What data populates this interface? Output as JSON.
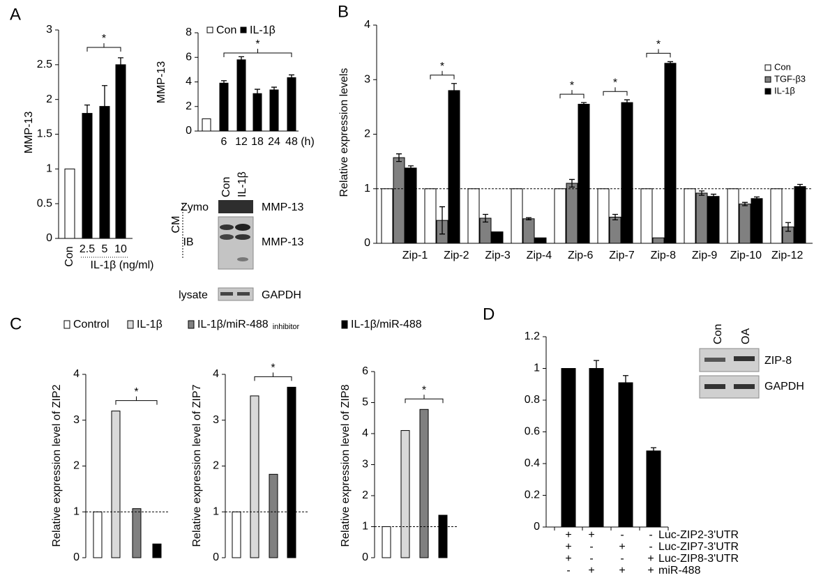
{
  "chart_data": [
    {
      "type": "bar",
      "panel": "A",
      "ylabel": "MMP-13",
      "categories": [
        "Con",
        "2.5",
        "5",
        "10"
      ],
      "xlabel": "IL-1β (ng/ml)",
      "values": [
        1,
        1.8,
        1.9,
        2.5
      ],
      "errors": [
        null,
        0.12,
        0.3,
        0.1
      ],
      "colors": [
        "#ffffff",
        "#000000",
        "#000000",
        "#000000"
      ],
      "ylim": [
        0,
        3
      ],
      "yticks": [
        0,
        0.5,
        1,
        1.5,
        2,
        2.5,
        3
      ],
      "significance": "*"
    },
    {
      "type": "bar",
      "ylabel": "MMP-13",
      "categories": [
        null,
        "6",
        "12",
        "18",
        "24",
        "48"
      ],
      "xunit": "(h)",
      "values": [
        1,
        3.9,
        5.8,
        3.05,
        3.35,
        4.35
      ],
      "errors": [
        null,
        0.2,
        0.25,
        0.35,
        0.22,
        0.22
      ],
      "colors": [
        "#ffffff",
        "#000000",
        "#000000",
        "#000000",
        "#000000",
        "#000000"
      ],
      "legend": [
        {
          "name": "Con",
          "color": "#ffffff"
        },
        {
          "name": "IL-1β",
          "color": "#000000"
        }
      ],
      "ylim": [
        0,
        8
      ],
      "yticks": [
        0,
        2,
        4,
        6,
        8
      ],
      "significance": "*"
    },
    {
      "type": "grouped-bar",
      "panel": "B",
      "ylabel": "Relative expression levels",
      "categories": [
        "Zip-1",
        "Zip-2",
        "Zip-3",
        "Zip-4",
        "Zip-6",
        "Zip-7",
        "Zip-8",
        "Zip-9",
        "Zip-10",
        "Zip-12"
      ],
      "series": [
        {
          "name": "Con",
          "color": "#ffffff",
          "values": [
            1,
            1,
            1,
            1,
            1,
            1,
            1,
            1,
            1,
            1
          ],
          "errors": [
            null,
            null,
            null,
            null,
            null,
            null,
            null,
            null,
            null,
            null
          ]
        },
        {
          "name": "TGF-β3",
          "color": "#808080",
          "values": [
            1.57,
            0.42,
            0.46,
            0.45,
            1.1,
            0.48,
            0.1,
            0.92,
            0.72,
            0.3
          ],
          "errors": [
            0.07,
            0.25,
            0.07,
            0.02,
            0.07,
            0.05,
            null,
            0.04,
            0.03,
            0.08
          ]
        },
        {
          "name": "IL-1β",
          "color": "#000000",
          "values": [
            1.38,
            2.8,
            0.21,
            0.1,
            2.55,
            2.58,
            3.3,
            0.86,
            0.82,
            1.04
          ],
          "errors": [
            0.04,
            0.13,
            null,
            null,
            0.03,
            0.05,
            0.03,
            0.04,
            0.03,
            0.04
          ]
        }
      ],
      "ylim": [
        0,
        4
      ],
      "yticks": [
        0,
        1,
        2,
        3,
        4
      ],
      "reference_line": 1,
      "significant": [
        "Zip-2",
        "Zip-6",
        "Zip-7",
        "Zip-8"
      ],
      "significance": "*"
    },
    {
      "type": "bar-set",
      "panel": "C",
      "legend": [
        {
          "name": "Control",
          "color": "#ffffff"
        },
        {
          "name": "IL-1β",
          "color": "#d9d9d9"
        },
        {
          "name": "IL-1β/miR-488",
          "note": "inhibitor",
          "color": "#808080"
        },
        {
          "name": "IL-1β/miR-488",
          "color": "#000000"
        }
      ],
      "charts": [
        {
          "ylabel": "Relative expression level of ZIP2",
          "values": [
            1,
            3.2,
            1.07,
            0.3
          ],
          "ylim": [
            0,
            4
          ],
          "yticks": [
            0,
            1,
            2,
            3,
            4
          ],
          "reference_line": 1,
          "significance": "*"
        },
        {
          "ylabel": "Relative expression level of ZIP7",
          "values": [
            1,
            3.53,
            1.82,
            3.72
          ],
          "ylim": [
            0,
            4
          ],
          "yticks": [
            0,
            1,
            2,
            3,
            4
          ],
          "reference_line": 1,
          "significance": "*"
        },
        {
          "ylabel": "Relative expression level of ZIP8",
          "values": [
            1,
            4.1,
            4.78,
            1.37
          ],
          "ylim": [
            0,
            6
          ],
          "yticks": [
            0,
            1,
            2,
            3,
            4,
            5,
            6
          ],
          "reference_line": 1,
          "significance": "*"
        }
      ]
    },
    {
      "type": "bar",
      "panel": "D",
      "values": [
        1,
        1,
        0.91,
        0.48
      ],
      "errors": [
        null,
        0.05,
        0.045,
        0.02
      ],
      "color": "#000000",
      "ylim": [
        0,
        1.2
      ],
      "yticks": [
        0,
        0.2,
        0.4,
        0.6,
        0.8,
        1,
        1.2
      ],
      "treatments": [
        {
          "label": "Luc-ZIP2-3'UTR",
          "marks": [
            "+",
            "+",
            "-",
            "-"
          ]
        },
        {
          "label": "Luc-ZIP7-3'UTR",
          "marks": [
            "+",
            "-",
            "+",
            "-"
          ]
        },
        {
          "label": "Luc-ZIP8-3'UTR",
          "marks": [
            "+",
            "-",
            "-",
            "+"
          ]
        },
        {
          "label": "miR-488",
          "marks": [
            "-",
            "+",
            "+",
            "+"
          ]
        }
      ]
    }
  ],
  "blots": [
    {
      "columns": [
        "Con",
        "IL-1β"
      ],
      "group_label": "CM",
      "rows": [
        {
          "label": "Zymo",
          "target": "MMP-13"
        },
        {
          "label": "IB",
          "target": "MMP-13"
        },
        {
          "label": "lysate",
          "target": "GAPDH"
        }
      ]
    },
    {
      "columns": [
        "Con",
        "OA"
      ],
      "rows": [
        {
          "target": "ZIP-8"
        },
        {
          "target": "GAPDH"
        }
      ]
    }
  ]
}
